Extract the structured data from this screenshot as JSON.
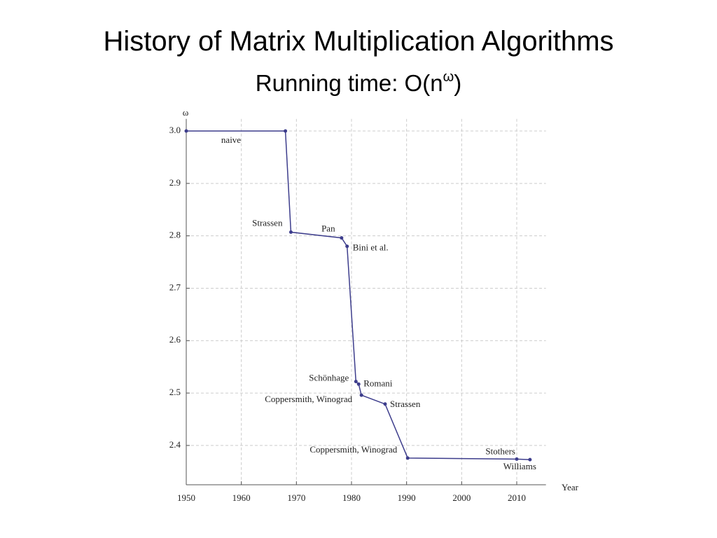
{
  "chart_data": {
    "type": "line",
    "title": "History of Matrix Multiplication Algorithms",
    "subtitle": {
      "text": "Running time: O(n",
      "superscript": "ω",
      "close": ")"
    },
    "y_label": "ω",
    "x_label": "Year",
    "x": [
      1950,
      1968,
      1969,
      1978.2,
      1979.2,
      1980.8,
      1981.3,
      1981.8,
      1986.1,
      1990.2,
      2010,
      2012.4
    ],
    "values": [
      3.0,
      3.0,
      2.807,
      2.796,
      2.78,
      2.522,
      2.517,
      2.496,
      2.479,
      2.376,
      2.374,
      2.3729
    ],
    "point_labels": [
      "naive",
      null,
      "Strassen",
      "Pan",
      "Bini et al.",
      "Schönhage",
      "Romani",
      "Coppersmith, Winograd",
      "Strassen",
      "Coppersmith, Winograd",
      "Stothers",
      "Williams"
    ],
    "color": "#3d3d8c",
    "xlim": [
      1950,
      2015.3
    ],
    "ylim": [
      2.325,
      3.023
    ],
    "xticks": [
      1950,
      1960,
      1970,
      1980,
      1990,
      2000,
      2010
    ],
    "yticks": [
      {
        "value": 2.4,
        "label": "2.4"
      },
      {
        "value": 2.5,
        "label": "2.5"
      },
      {
        "value": 2.6,
        "label": "2.6"
      },
      {
        "value": 2.7,
        "label": "2.7"
      },
      {
        "value": 2.8,
        "label": "2.8"
      },
      {
        "value": 2.9,
        "label": "2.9"
      },
      {
        "value": 3,
        "label": "3.0"
      }
    ],
    "grid": true
  }
}
